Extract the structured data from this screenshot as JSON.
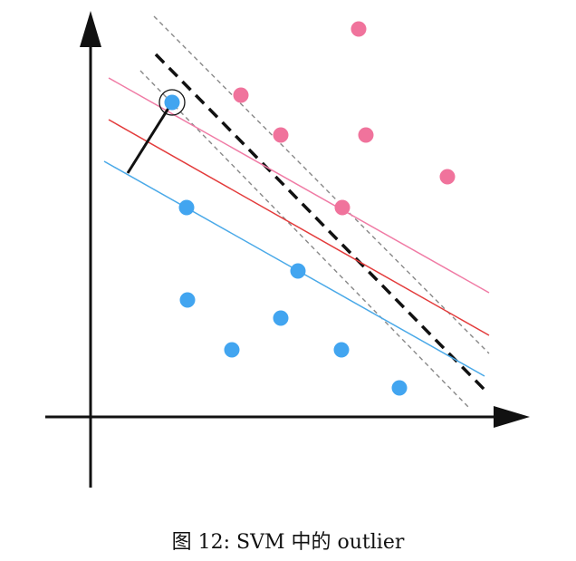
{
  "caption": "图 12: SVM 中的 outlier",
  "colors": {
    "positive_point": "#f0739c",
    "negative_point": "#42a5f0",
    "hyperplane_new": "#111111",
    "margin_dashed": "#888888",
    "hyperplane_red": "#e33b3b",
    "margin_pink": "#f07ba5",
    "margin_blue": "#4aa9e8",
    "axis": "#111111"
  },
  "icons": {
    "outlier_marker": "circle-ring-icon",
    "x_axis_arrow": "arrow-right-icon",
    "y_axis_arrow": "arrow-up-icon"
  }
}
